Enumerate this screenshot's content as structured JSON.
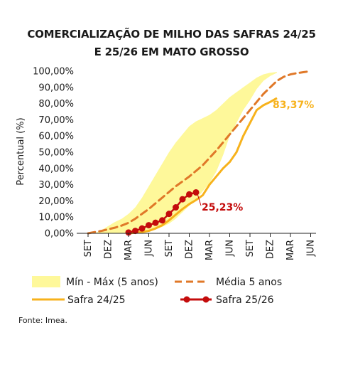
{
  "colors": {
    "band": "#fef89a",
    "media": "#e07828",
    "safra2425": "#f7b21c",
    "safra2526": "#c40c0c",
    "axis": "#222222"
  },
  "chart_data": {
    "type": "line",
    "title": [
      "COMERCIALIZAÇÃO DE MILHO DAS SAFRAS 24/25",
      "E 25/26 EM MATO GROSSO"
    ],
    "ylabel": "Percentual (%)",
    "y_ticks": [
      "0,00%",
      "10,00%",
      "20,00%",
      "30,00%",
      "40,00%",
      "50,00%",
      "60,00%",
      "70,00%",
      "80,00%",
      "90,00%",
      "100,00%"
    ],
    "ylim": [
      0,
      100
    ],
    "x_ticks": [
      "SET",
      "DEZ",
      "MAR",
      "JUN",
      "SET",
      "DEZ",
      "MAR",
      "JUN",
      "SET",
      "DEZ",
      "MAR",
      "JUN"
    ],
    "x_unit": "month index from SET of first year (0 = SET, 3 = DEZ, ...)",
    "band": {
      "name": "Mín - Máx (5 anos)",
      "x": [
        1,
        2,
        3,
        4,
        5,
        6,
        7,
        8,
        9,
        10,
        11,
        12,
        13,
        14,
        15,
        16,
        17,
        18,
        19,
        20,
        21,
        22,
        23,
        24,
        25,
        26,
        27,
        28
      ],
      "lower": [
        0,
        0,
        0,
        0,
        0,
        0,
        0.5,
        1,
        1.5,
        2.5,
        4,
        6,
        9,
        13,
        17,
        21,
        26,
        31,
        38,
        48,
        60,
        68,
        76,
        82,
        89,
        94,
        97,
        99
      ],
      "upper": [
        0,
        2,
        4.5,
        7,
        9,
        12,
        16,
        22,
        29,
        36,
        43,
        50,
        56,
        61,
        66,
        69,
        71,
        73,
        76,
        80,
        84,
        87,
        90,
        93,
        96,
        98,
        99,
        99.5
      ]
    },
    "series": [
      {
        "name": "Média 5 anos",
        "x": [
          0,
          1,
          2,
          3,
          4,
          5,
          6,
          7,
          8,
          9,
          10,
          11,
          12,
          13,
          14,
          15,
          16,
          17,
          18,
          19,
          20,
          21,
          22,
          23,
          24,
          25,
          26,
          27,
          28,
          29,
          30,
          31,
          32,
          33
        ],
        "values": [
          0,
          0.8,
          1.5,
          2.5,
          3.5,
          4.8,
          6.5,
          9,
          12,
          15,
          18.5,
          22,
          25.5,
          29,
          32,
          35,
          38.5,
          42,
          46.5,
          51,
          56,
          61,
          66,
          71,
          76,
          81,
          86,
          90,
          94,
          96.5,
          98,
          98.8,
          99.4,
          100
        ]
      },
      {
        "name": "Safra 24/25",
        "x": [
          6,
          7,
          8,
          9,
          10,
          11,
          12,
          13,
          14,
          15,
          16,
          17,
          18,
          19,
          20,
          21,
          22,
          23,
          24,
          25,
          26,
          27,
          28
        ],
        "values": [
          0,
          0.3,
          0.8,
          1.5,
          3,
          5,
          8,
          11.5,
          15,
          18,
          20.5,
          23.5,
          30,
          35,
          40,
          44,
          50,
          60,
          68,
          76,
          79,
          81,
          83.37
        ]
      },
      {
        "name": "Safra 25/26",
        "x": [
          6,
          7,
          8,
          9,
          10,
          11,
          12,
          13,
          14,
          15,
          16
        ],
        "values": [
          0.5,
          1.5,
          3,
          5,
          6.5,
          8,
          12,
          16,
          21,
          24,
          25.23
        ]
      }
    ],
    "annotations": [
      {
        "text": "83,37%",
        "series": "Safra 24/25"
      },
      {
        "text": "25,23%",
        "series": "Safra 25/26"
      }
    ],
    "legend": [
      "Mín - Máx (5 anos)",
      "Média 5 anos",
      "Safra 24/25",
      "Safra 25/26"
    ],
    "legend_position": "bottom"
  },
  "source": "Fonte: Imea."
}
